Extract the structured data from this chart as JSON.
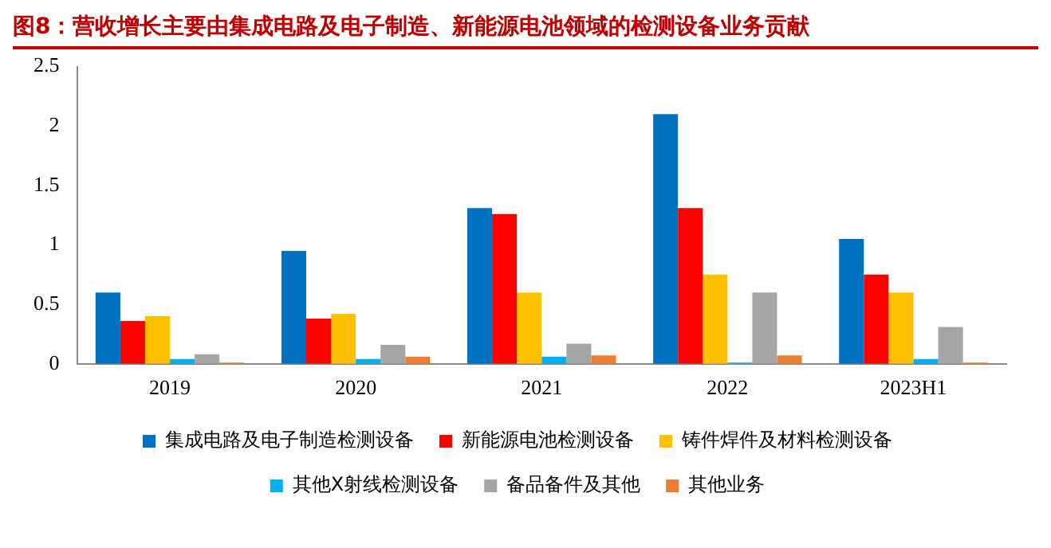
{
  "chart_data": {
    "type": "bar",
    "title": "图8：营收增长主要由集成电路及电子制造、新能源电池领域的检测设备业务贡献",
    "categories": [
      "2019",
      "2020",
      "2021",
      "2022",
      "2023H1"
    ],
    "series": [
      {
        "name": "集成电路及电子制造检测设备",
        "color": "#0070c0",
        "values": [
          0.6,
          0.95,
          1.31,
          2.1,
          1.05
        ]
      },
      {
        "name": "新能源电池检测设备",
        "color": "#ff0000",
        "values": [
          0.36,
          0.38,
          1.26,
          1.31,
          0.75
        ]
      },
      {
        "name": "铸件焊件及材料检测设备",
        "color": "#ffc000",
        "values": [
          0.4,
          0.42,
          0.6,
          0.75,
          0.6
        ]
      },
      {
        "name": "其他X射线检测设备",
        "color": "#00b0f0",
        "values": [
          0.04,
          0.04,
          0.06,
          0.01,
          0.04
        ]
      },
      {
        "name": "备品备件及其他",
        "color": "#a5a5a5",
        "values": [
          0.08,
          0.16,
          0.17,
          0.6,
          0.31
        ]
      },
      {
        "name": "其他业务",
        "color": "#ed7d31",
        "values": [
          0.01,
          0.06,
          0.07,
          0.07,
          0.01
        ]
      }
    ],
    "ylim": [
      0,
      2.5
    ],
    "yticks": [
      0,
      0.5,
      1,
      1.5,
      2,
      2.5
    ],
    "grid": false,
    "legend": "bottom"
  }
}
